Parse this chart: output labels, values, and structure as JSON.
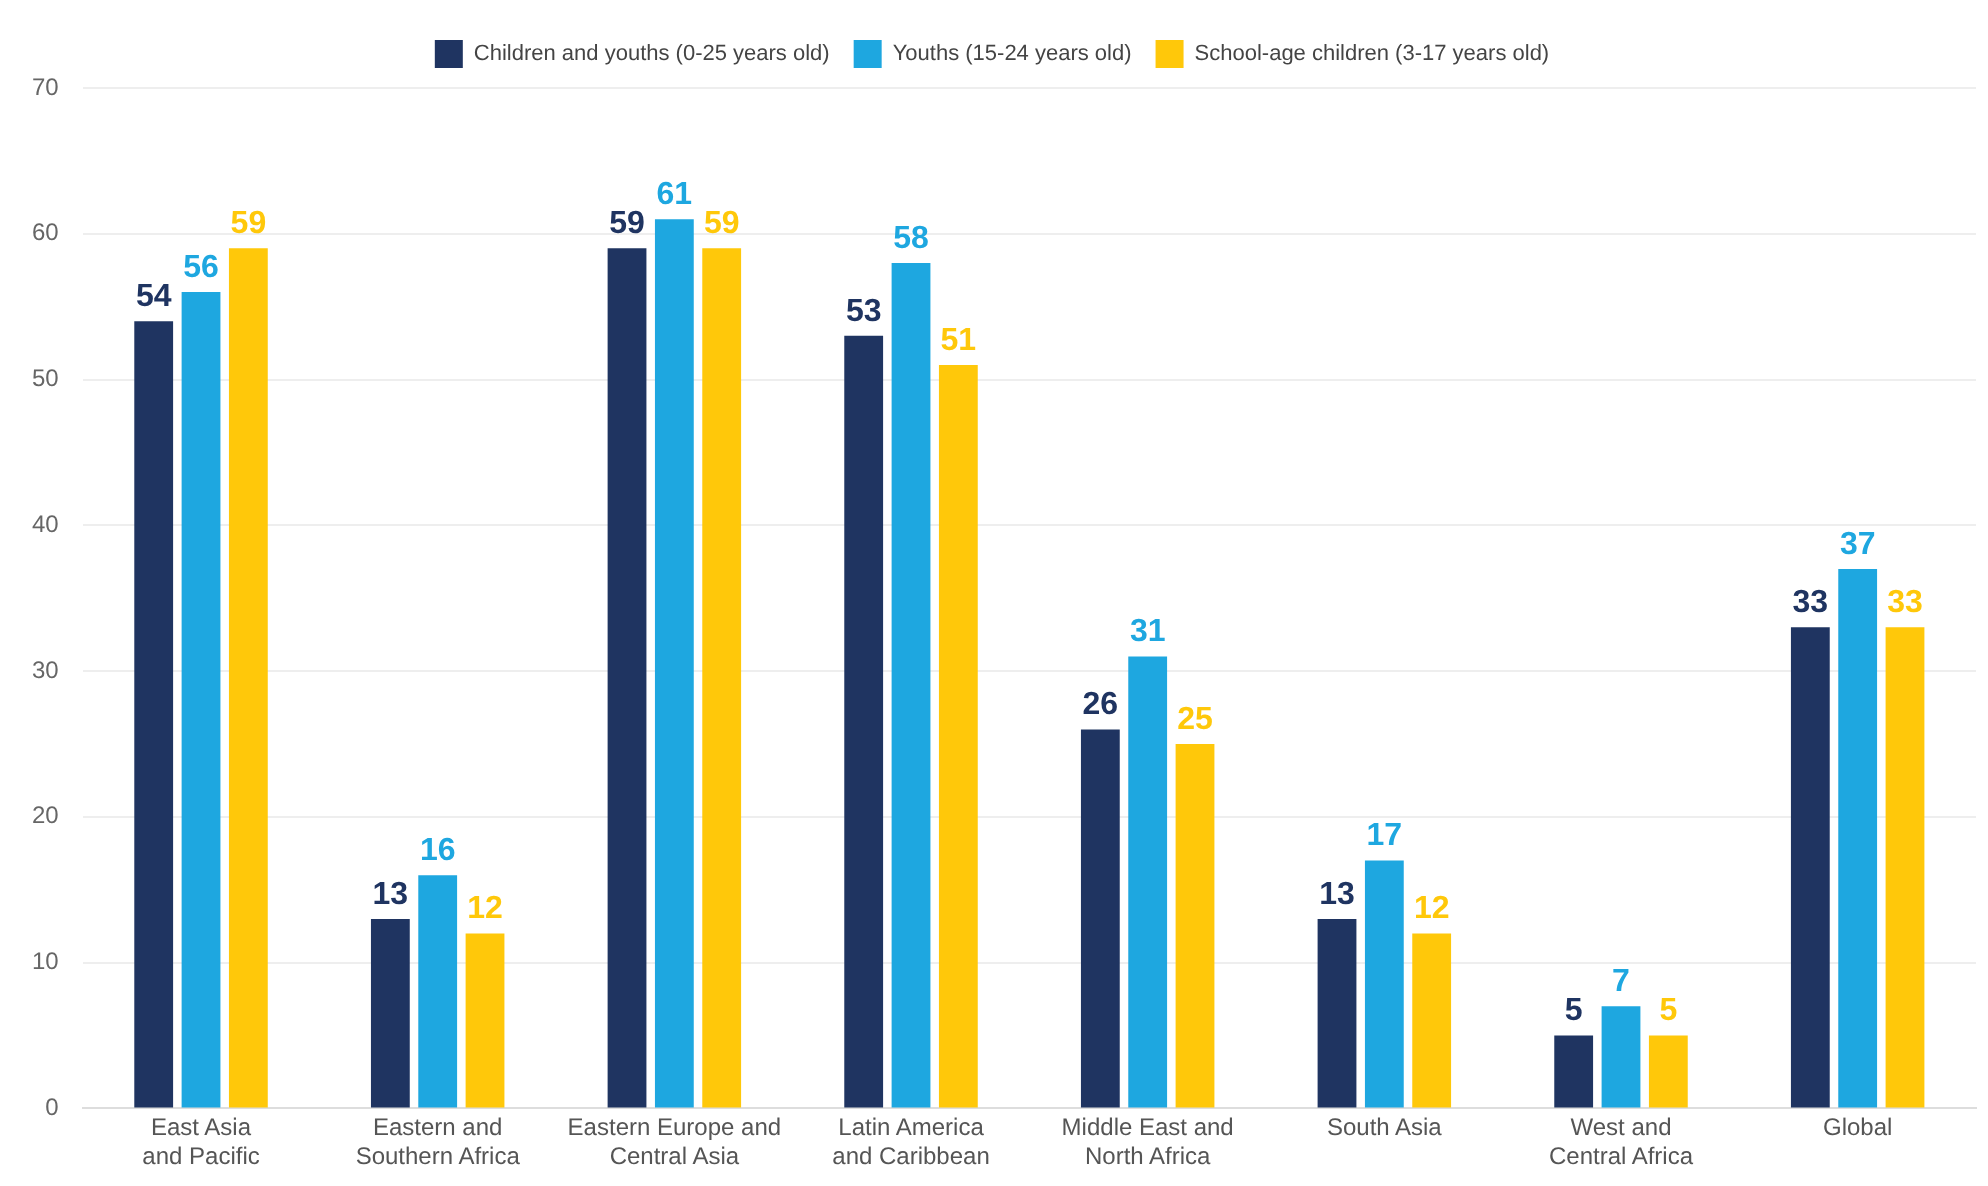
{
  "chart_data": {
    "type": "bar",
    "categories": [
      "East Asia and Pacific",
      "Eastern and Southern Africa",
      "Eastern Europe and Central Asia",
      "Latin America and Caribbean",
      "Middle East and North Africa",
      "South Asia",
      "West and Central Africa",
      "Global"
    ],
    "series": [
      {
        "name": "Children and youths (0-25 years old)",
        "color": "#1f3461",
        "values": [
          54,
          13,
          59,
          53,
          26,
          13,
          5,
          33
        ]
      },
      {
        "name": "Youths (15-24 years old)",
        "color": "#1ea7e0",
        "values": [
          56,
          16,
          61,
          58,
          31,
          17,
          7,
          37
        ]
      },
      {
        "name": "School-age children (3-17 years old)",
        "color": "#ffc80a",
        "values": [
          59,
          12,
          59,
          51,
          25,
          12,
          5,
          33
        ]
      }
    ],
    "ylim": [
      0,
      70
    ],
    "yticks": [
      0,
      10,
      20,
      30,
      40,
      50,
      60,
      70
    ],
    "grid": "y",
    "legend": "top",
    "data_labels": true
  }
}
